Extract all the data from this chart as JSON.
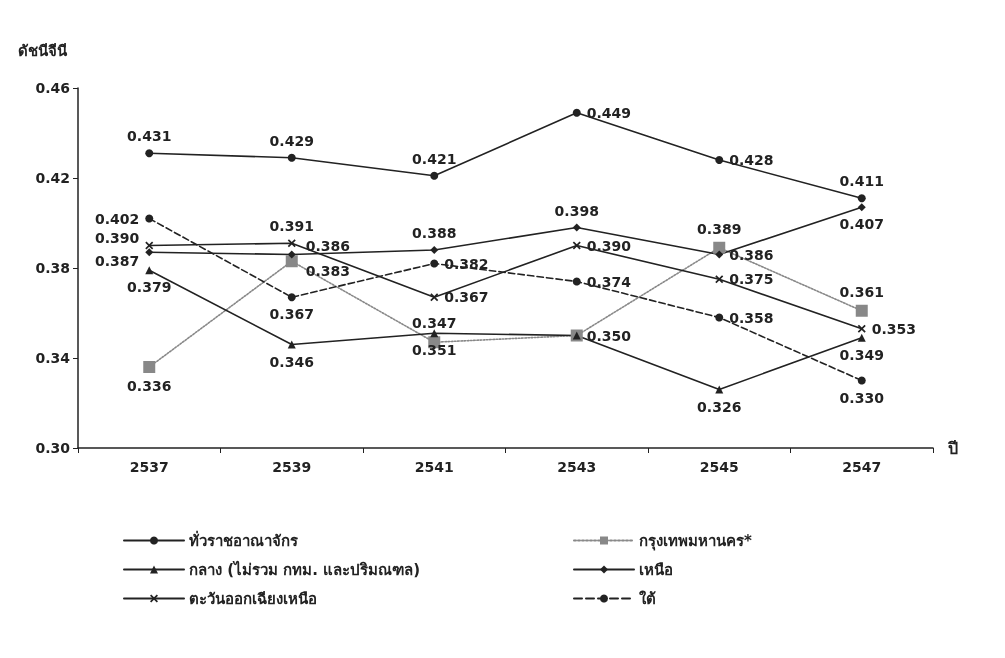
{
  "chart_data": {
    "type": "line",
    "xlabel": "ปี",
    "ylabel": "ดัชนีจีนี",
    "categories": [
      "2537",
      "2539",
      "2541",
      "2543",
      "2545",
      "2547"
    ],
    "series": [
      {
        "name": "ทั่วราชอาณาจักร",
        "color": "#222222",
        "marker": "circle",
        "line_style": "solid",
        "values": [
          0.431,
          0.429,
          0.421,
          0.449,
          0.428,
          0.411
        ],
        "value_labels": [
          "0.431",
          "0.429",
          "0.421",
          "0.449",
          "0.428",
          "0.411"
        ]
      },
      {
        "name": "กรุงเทพมหานคร*",
        "color": "#888888",
        "marker": "square",
        "line_style": "dotted",
        "values": [
          0.336,
          0.383,
          0.347,
          0.35,
          0.389,
          0.361
        ],
        "value_labels": [
          "0.336",
          "0.383",
          "0.347",
          null,
          "0.389",
          "0.361"
        ]
      },
      {
        "name": "กลาง (ไม่รวม กทม. และปริมณฑล)",
        "color": "#222222",
        "marker": "triangle",
        "line_style": "solid",
        "values": [
          0.379,
          0.346,
          0.351,
          0.35,
          0.326,
          0.349
        ],
        "value_labels": [
          "0.379",
          "0.346",
          "0.351",
          "0.350",
          "0.326",
          "0.349"
        ]
      },
      {
        "name": "เหนือ",
        "color": "#222222",
        "marker": "diamond",
        "line_style": "solid",
        "values": [
          0.387,
          0.386,
          0.388,
          0.398,
          0.386,
          0.407
        ],
        "value_labels": [
          "0.387",
          "0.386",
          "0.388",
          "0.398",
          "0.386",
          "0.407"
        ]
      },
      {
        "name": "ตะวันออกเฉียงเหนือ",
        "color": "#222222",
        "marker": "cross",
        "line_style": "solid",
        "values": [
          0.39,
          0.391,
          0.367,
          0.39,
          0.375,
          0.353
        ],
        "value_labels": [
          "0.390",
          "0.391",
          "0.367",
          "0.390",
          "0.375",
          "0.353"
        ]
      },
      {
        "name": "ใต้",
        "color": "#222222",
        "marker": "circle",
        "line_style": "dashed",
        "values": [
          0.402,
          0.367,
          0.382,
          0.374,
          0.358,
          0.33
        ],
        "value_labels": [
          "0.402",
          "0.367",
          "0.382",
          "0.374",
          "0.358",
          "0.330"
        ]
      }
    ],
    "ylim": [
      0.3,
      0.46
    ],
    "yticks": [
      {
        "value": 0.3,
        "label": "0.30"
      },
      0.34,
      0.38,
      0.42,
      0.46
    ],
    "grid": false,
    "legend": "bottom"
  }
}
